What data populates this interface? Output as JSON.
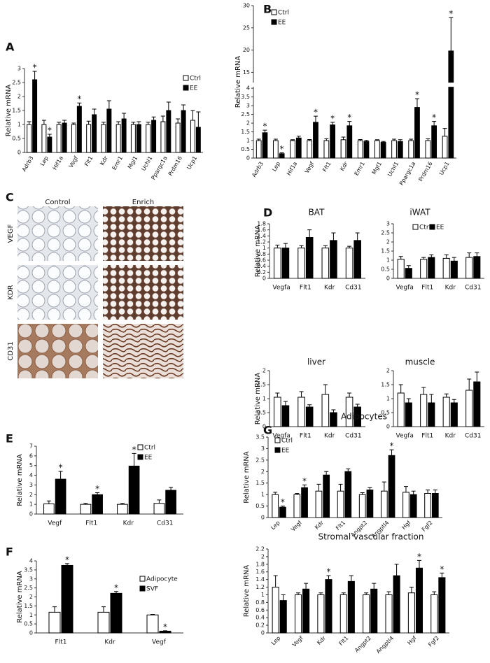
{
  "chart_data": [
    {
      "type": "bar",
      "panel": "A",
      "ylabel": "Relative mRNA",
      "categories": [
        "Adrb3",
        "Lep",
        "Hif1a",
        "Vegf",
        "Flt1",
        "Kdr",
        "Emr1",
        "Mgl1",
        "Uchl1",
        "Ppargc1a",
        "Prdm16",
        "Ucp1"
      ],
      "series": [
        {
          "name": "Ctrl",
          "color": "#ffffff",
          "values": [
            1,
            1,
            1,
            1,
            1,
            1,
            1,
            1,
            1,
            1.1,
            1.05,
            1.15
          ],
          "errors": [
            0.1,
            0.15,
            0.08,
            0.05,
            0.12,
            0.08,
            0.1,
            0.08,
            0.08,
            0.2,
            0.15,
            0.35
          ],
          "significance": [
            null,
            null,
            null,
            null,
            null,
            null,
            null,
            null,
            null,
            null,
            null,
            null
          ]
        },
        {
          "name": "EE",
          "color": "#000000",
          "values": [
            2.6,
            0.55,
            1.05,
            1.65,
            1.35,
            1.55,
            1.2,
            1.0,
            1.15,
            1.5,
            1.5,
            0.9
          ],
          "errors": [
            0.3,
            0.1,
            0.1,
            0.12,
            0.2,
            0.3,
            0.2,
            0.1,
            0.12,
            0.3,
            0.2,
            0.55
          ],
          "significance": [
            "*",
            "*",
            null,
            "*",
            null,
            null,
            null,
            null,
            null,
            null,
            null,
            null
          ]
        }
      ],
      "ylim": [
        0,
        3
      ],
      "yticks": [
        0,
        0.5,
        1,
        1.5,
        2,
        2.5,
        3
      ],
      "legend": true
    },
    {
      "type": "bar",
      "panel": "B",
      "ylabel": "Relative mRNA",
      "categories": [
        "Adrb3",
        "Lep",
        "Hif1a",
        "Vegf",
        "Flt1",
        "Kdr",
        "Emr1",
        "Mgl1",
        "Uchl1",
        "Ppargc1a",
        "Prdm16",
        "Ucp1"
      ],
      "series": [
        {
          "name": "Ctrl",
          "color": "#ffffff",
          "values": [
            1,
            1,
            1,
            1,
            1,
            1.05,
            1,
            1,
            1,
            1,
            1,
            1.25
          ],
          "errors": [
            0.08,
            0.08,
            0.05,
            0.06,
            0.1,
            0.15,
            0.06,
            0.05,
            0.08,
            0.08,
            0.1,
            0.45
          ],
          "significance": [
            null,
            null,
            null,
            null,
            null,
            null,
            null,
            null,
            null,
            null,
            null,
            null
          ]
        },
        {
          "name": "EE",
          "color": "#000000",
          "values": [
            1.45,
            0.25,
            1.15,
            2.05,
            1.9,
            1.85,
            0.95,
            0.9,
            0.95,
            2.9,
            1.85,
            19.8
          ],
          "errors": [
            0.15,
            0.05,
            0.1,
            0.35,
            0.15,
            0.25,
            0.06,
            0.05,
            0.1,
            0.5,
            0.25,
            7.5
          ],
          "significance": [
            "*",
            "*",
            null,
            "*",
            "*",
            "*",
            null,
            null,
            null,
            "*",
            "*",
            "*"
          ]
        }
      ],
      "ylim": [
        0,
        30
      ],
      "ybreak": [
        4,
        13
      ],
      "yticks": [
        0,
        0.5,
        1,
        1.5,
        2,
        2.5,
        3,
        3.5,
        4,
        15,
        20,
        25,
        30
      ],
      "legend": true
    },
    {
      "type": "image-grid",
      "panel": "C",
      "columns": [
        "Control",
        "Enrich"
      ],
      "rows": [
        "VEGF",
        "KDR",
        "CD31"
      ]
    },
    {
      "type": "bar",
      "panel": "D",
      "title": "BAT",
      "ylabel": "Relative mRNA",
      "categories": [
        "Vegfa",
        "Flt1",
        "Kdr",
        "Cd31"
      ],
      "series": [
        {
          "color": "#ffffff",
          "values": [
            1,
            1,
            1,
            1
          ],
          "errors": [
            0.1,
            0.08,
            0.08,
            0.06
          ]
        },
        {
          "color": "#000000",
          "values": [
            1,
            1.35,
            1.25,
            1.25
          ],
          "errors": [
            0.15,
            0.25,
            0.25,
            0.25
          ]
        }
      ],
      "ylim": [
        0,
        1.8
      ],
      "yticks": [
        0,
        0.2,
        0.4,
        0.6,
        0.8,
        1,
        1.2,
        1.4,
        1.6,
        1.8
      ],
      "legend": false
    },
    {
      "type": "bar",
      "title": "iWAT",
      "categories": [
        "Vegfa",
        "Flt1",
        "Kdr",
        "Cd31"
      ],
      "series": [
        {
          "name": "Ctrl",
          "color": "#ffffff",
          "values": [
            1.05,
            1.05,
            1.1,
            1.15
          ],
          "errors": [
            0.15,
            0.1,
            0.2,
            0.25
          ]
        },
        {
          "name": "EE",
          "color": "#000000",
          "values": [
            0.55,
            1.15,
            0.95,
            1.2
          ],
          "errors": [
            0.15,
            0.15,
            0.2,
            0.2
          ]
        }
      ],
      "ylim": [
        0,
        3
      ],
      "yticks": [
        0,
        0.5,
        1,
        1.5,
        2,
        2.5,
        3
      ],
      "legend": true
    },
    {
      "type": "bar",
      "title": "liver",
      "ylabel": "Relative mRNA",
      "categories": [
        "Vegfa",
        "Flt1",
        "Kdr",
        "Cd31"
      ],
      "series": [
        {
          "color": "#ffffff",
          "values": [
            1.05,
            1.05,
            1.15,
            1.05
          ],
          "errors": [
            0.15,
            0.2,
            0.35,
            0.15
          ]
        },
        {
          "color": "#000000",
          "values": [
            0.75,
            0.7,
            0.5,
            0.7
          ],
          "errors": [
            0.15,
            0.08,
            0.1,
            0.1
          ]
        }
      ],
      "ylim": [
        0,
        2
      ],
      "yticks": [
        0,
        0.5,
        1,
        1.5,
        2
      ],
      "legend": false
    },
    {
      "type": "bar",
      "title": "muscle",
      "categories": [
        "Vegfa",
        "Flt1",
        "Kdr",
        "Cd31"
      ],
      "series": [
        {
          "color": "#ffffff",
          "values": [
            1.2,
            1.15,
            1.05,
            1.3
          ],
          "errors": [
            0.3,
            0.25,
            0.12,
            0.4
          ]
        },
        {
          "color": "#000000",
          "values": [
            0.85,
            0.85,
            0.85,
            1.6
          ],
          "errors": [
            0.15,
            0.3,
            0.12,
            0.35
          ]
        }
      ],
      "ylim": [
        0,
        2
      ],
      "yticks": [
        0,
        0.5,
        1,
        1.5,
        2
      ],
      "legend": false
    },
    {
      "type": "bar",
      "panel": "E",
      "ylabel": "Relative mRNA",
      "categories": [
        "Vegf",
        "Flt1",
        "Kdr",
        "Cd31"
      ],
      "series": [
        {
          "name": "Ctrl",
          "color": "#ffffff",
          "values": [
            1.05,
            1,
            1,
            1.1
          ],
          "errors": [
            0.3,
            0.1,
            0.1,
            0.35
          ],
          "significance": [
            null,
            null,
            null,
            null
          ]
        },
        {
          "name": "EE",
          "color": "#000000",
          "values": [
            3.6,
            2,
            4.95,
            2.45
          ],
          "errors": [
            0.8,
            0.2,
            1.3,
            0.3
          ],
          "significance": [
            "*",
            "*",
            "*",
            null
          ]
        }
      ],
      "ylim": [
        0,
        7
      ],
      "yticks": [
        0,
        1,
        2,
        3,
        4,
        5,
        6,
        7
      ],
      "legend": true
    },
    {
      "type": "bar",
      "panel": "F",
      "ylabel": "Relative mRNA",
      "categories": [
        "Flt1",
        "Kdr",
        "Vegf"
      ],
      "series": [
        {
          "name": "Adipocyte",
          "color": "#ffffff",
          "values": [
            1.15,
            1.15,
            1
          ],
          "errors": [
            0.3,
            0.3,
            0.03
          ],
          "significance": [
            null,
            null,
            null
          ]
        },
        {
          "name": "SVF",
          "color": "#000000",
          "values": [
            3.75,
            2.2,
            0.1
          ],
          "errors": [
            0.1,
            0.1,
            0.02
          ],
          "significance": [
            "*",
            "*",
            "*"
          ]
        }
      ],
      "ylim": [
        0,
        4
      ],
      "yticks": [
        0,
        0.5,
        1,
        1.5,
        2,
        2.5,
        3,
        3.5,
        4
      ],
      "legend": true
    },
    {
      "type": "bar",
      "panel": "G",
      "title": "Adipocytes",
      "ylabel": "Relative mRNA",
      "categories": [
        "Lep",
        "Vegf",
        "Kdr",
        "Flt1",
        "Angpt2",
        "Angptl4",
        "Hgf",
        "Fgf2"
      ],
      "series": [
        {
          "name": "Ctrl",
          "color": "#ffffff",
          "values": [
            1,
            1,
            1.15,
            1.15,
            1,
            1.15,
            1.1,
            1.05
          ],
          "errors": [
            0.1,
            0.05,
            0.3,
            0.3,
            0.08,
            0.4,
            0.25,
            0.15
          ],
          "significance": [
            null,
            null,
            null,
            null,
            null,
            null,
            null,
            null
          ]
        },
        {
          "name": "EE",
          "color": "#000000",
          "values": [
            0.45,
            1.3,
            1.85,
            2.0,
            1.2,
            2.7,
            1.0,
            1.05
          ],
          "errors": [
            0.05,
            0.12,
            0.15,
            0.12,
            0.1,
            0.25,
            0.15,
            0.15
          ],
          "significance": [
            "*",
            "*",
            null,
            null,
            null,
            "*",
            null,
            null
          ]
        }
      ],
      "ylim": [
        0,
        3.5
      ],
      "yticks": [
        0,
        0.5,
        1,
        1.5,
        2,
        2.5,
        3,
        3.5
      ],
      "legend": true
    },
    {
      "type": "bar",
      "title": "Stromal vascular fraction",
      "ylabel": "Relative mRNA",
      "categories": [
        "Lep",
        "Vegf",
        "Kdr",
        "Flt1",
        "Angpt2",
        "Angptl4",
        "Hgf",
        "Fgf2"
      ],
      "series": [
        {
          "color": "#ffffff",
          "values": [
            1.2,
            1,
            1,
            1,
            1,
            1,
            1.05,
            1
          ],
          "errors": [
            0.3,
            0.05,
            0.05,
            0.05,
            0.05,
            0.08,
            0.15,
            0.08
          ],
          "significance": [
            null,
            null,
            null,
            null,
            null,
            null,
            null,
            null
          ]
        },
        {
          "color": "#000000",
          "values": [
            0.85,
            1.15,
            1.4,
            1.35,
            1.15,
            1.5,
            1.7,
            1.45
          ],
          "errors": [
            0.15,
            0.15,
            0.1,
            0.15,
            0.15,
            0.3,
            0.2,
            0.12
          ],
          "significance": [
            null,
            null,
            "*",
            null,
            null,
            null,
            "*",
            "*"
          ]
        }
      ],
      "ylim": [
        0,
        2.2
      ],
      "yticks": [
        0,
        0.2,
        0.4,
        0.6,
        0.8,
        1,
        1.2,
        1.4,
        1.6,
        1.8,
        2,
        2.2
      ],
      "legend": false
    }
  ]
}
